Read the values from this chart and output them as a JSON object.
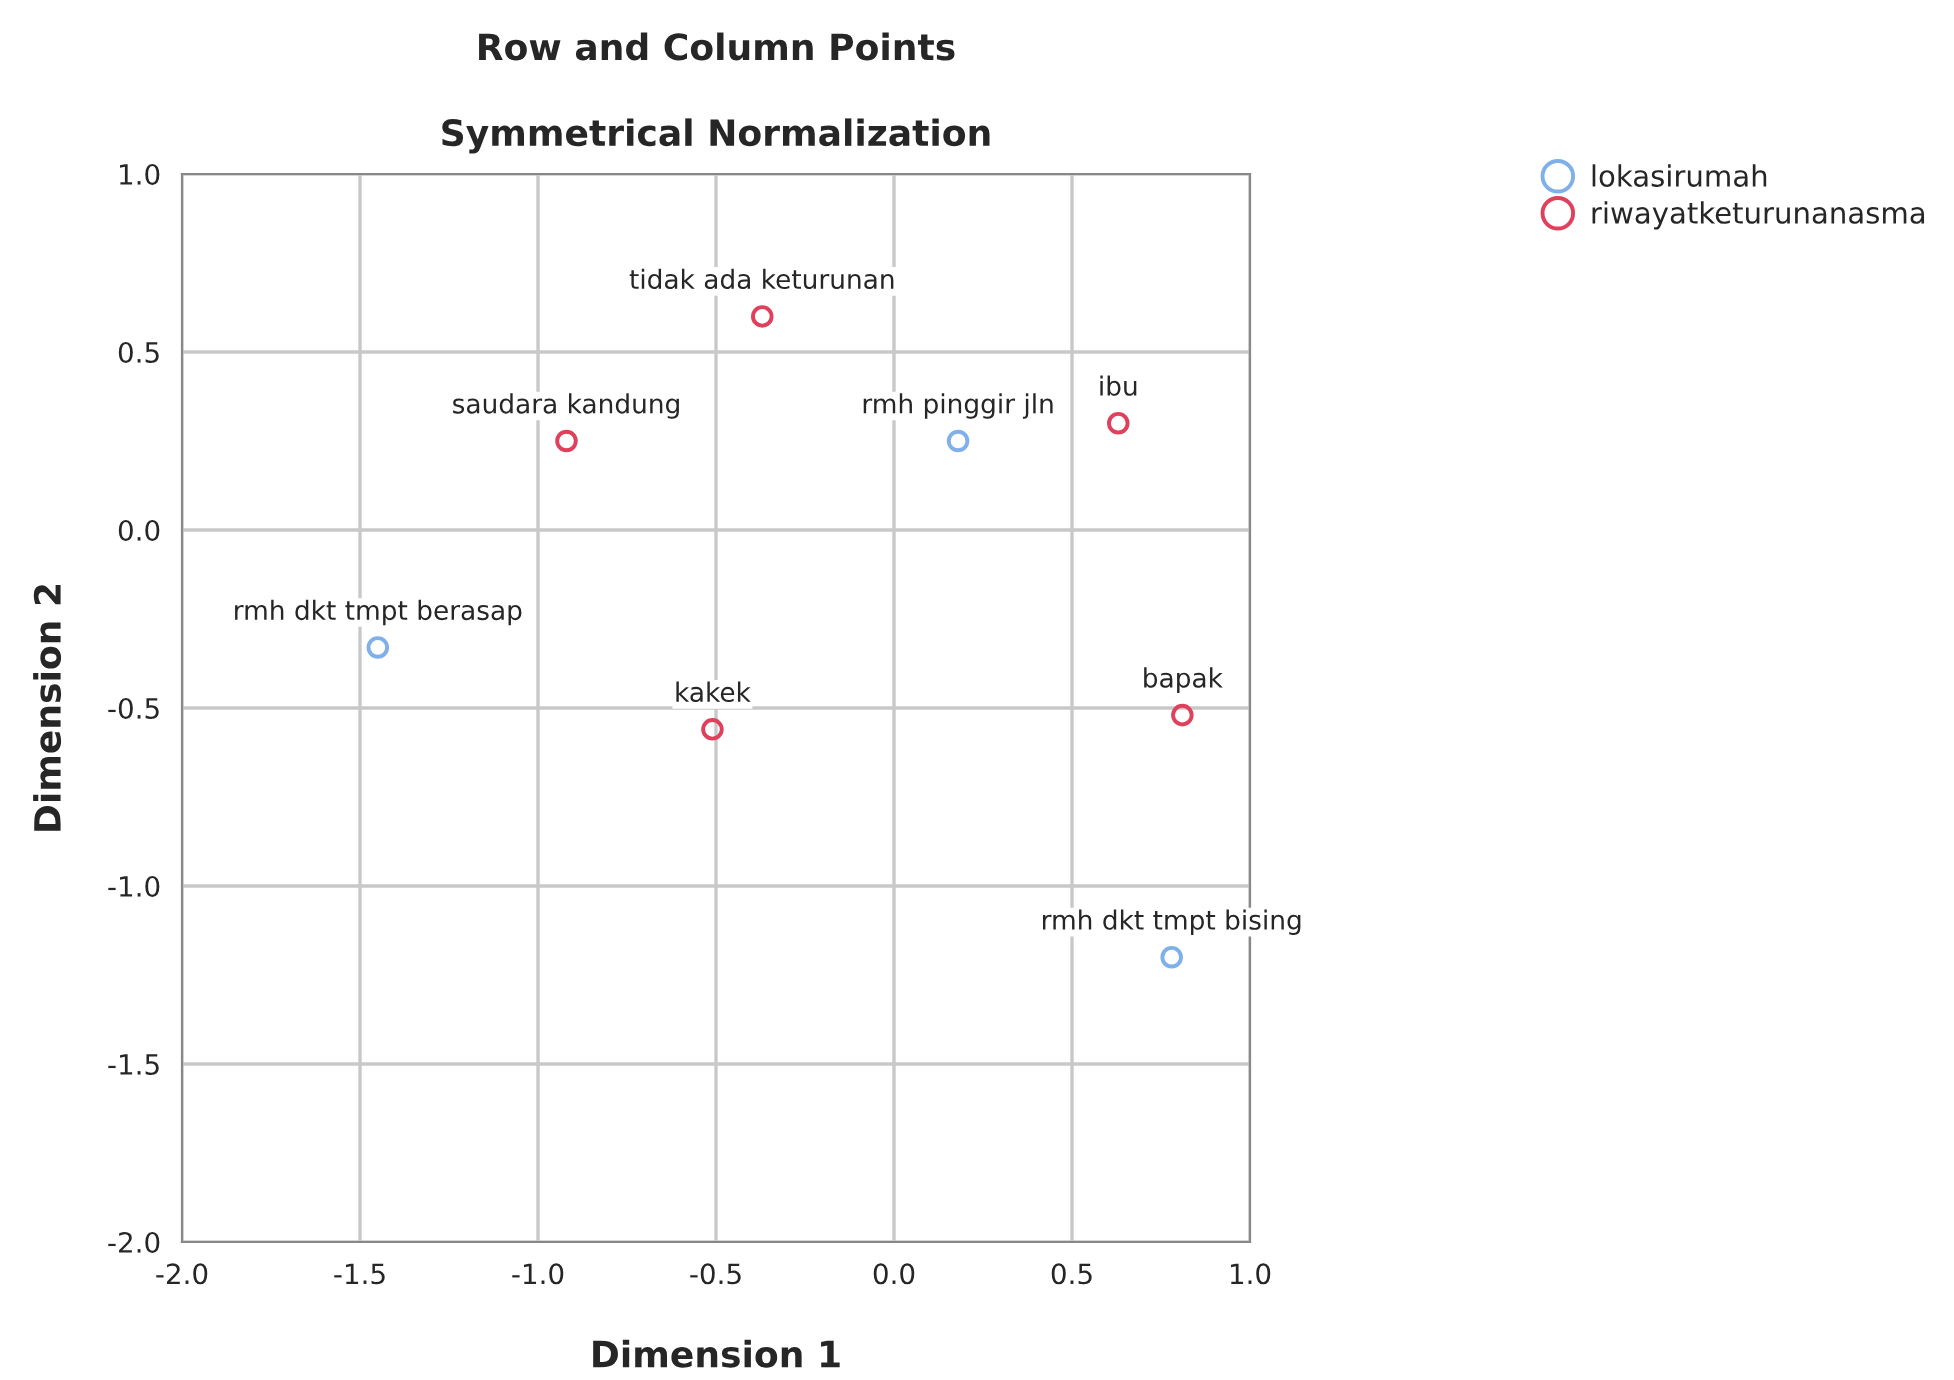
{
  "chart_data": {
    "type": "scatter",
    "title": "Row and Column Points",
    "subtitle": "Symmetrical Normalization",
    "xlabel": "Dimension 1",
    "ylabel": "Dimension 2",
    "xlim": [
      -2.0,
      1.0
    ],
    "ylim": [
      -2.0,
      1.0
    ],
    "xticks": [
      {
        "value": -2.0,
        "label": "-2.0"
      },
      {
        "value": -1.5,
        "label": "-1.5"
      },
      {
        "value": -1.0,
        "label": "-1.0"
      },
      {
        "value": -0.5,
        "label": "-0.5"
      },
      {
        "value": 0.0,
        "label": "0.0"
      },
      {
        "value": 0.5,
        "label": "0.5"
      },
      {
        "value": 1.0,
        "label": "1.0"
      }
    ],
    "yticks": [
      {
        "value": -2.0,
        "label": "-2.0"
      },
      {
        "value": -1.5,
        "label": "-1.5"
      },
      {
        "value": -1.0,
        "label": "-1.0"
      },
      {
        "value": -0.5,
        "label": "-0.5"
      },
      {
        "value": 0.0,
        "label": "0.0"
      },
      {
        "value": 0.5,
        "label": "0.5"
      },
      {
        "value": 1.0,
        "label": "1.0"
      }
    ],
    "grid": true,
    "legend": "top right",
    "marker": "circle",
    "series": [
      {
        "name": "lokasirumah",
        "color": "#7fb0ea",
        "x": [
          0.18,
          -1.45,
          0.78
        ],
        "values": [
          0.25,
          -0.33,
          -1.2
        ]
      },
      {
        "name": "riwayatketurunanasma",
        "color": "#e0405c",
        "x": [
          -0.37,
          -0.92,
          0.63,
          -0.51,
          0.81
        ],
        "values": [
          0.6,
          0.25,
          0.3,
          -0.56,
          -0.52
        ]
      }
    ],
    "annotations": [
      {
        "text": "rmh pinggir jln",
        "x": 0.18,
        "y": 0.25
      },
      {
        "text": "rmh dkt tmpt berasap",
        "x": -1.45,
        "y": -0.33
      },
      {
        "text": "rmh dkt tmpt bising",
        "x": 0.78,
        "y": -1.2
      },
      {
        "text": "tidak ada keturunan",
        "x": -0.37,
        "y": 0.6
      },
      {
        "text": "saudara kandung",
        "x": -0.92,
        "y": 0.25
      },
      {
        "text": "ibu",
        "x": 0.63,
        "y": 0.3
      },
      {
        "text": "kakek",
        "x": -0.51,
        "y": -0.56
      },
      {
        "text": "bapak",
        "x": 0.81,
        "y": -0.52
      }
    ]
  }
}
